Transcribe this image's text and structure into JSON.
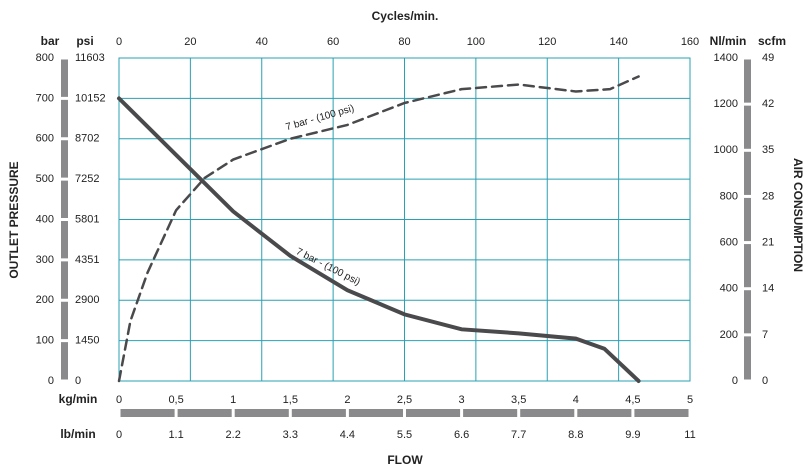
{
  "chart_data": {
    "type": "line",
    "x_title": "kg/min",
    "y_title": "bar",
    "y2_title": "Nl/min",
    "left_label": "OUTLET PRESSURE",
    "right_label": "AIR CONSUMPTION",
    "bottom_label": "FLOW",
    "xlim": [
      0,
      5
    ],
    "xticks": [
      0,
      {
        "value": 0.5,
        "label": "0,5"
      },
      1,
      {
        "value": 1.5,
        "label": "1,5"
      },
      2,
      {
        "value": 2.5,
        "label": "2,5"
      },
      3,
      {
        "value": 3.5,
        "label": "3,5"
      },
      4,
      {
        "value": 4.5,
        "label": "4,5"
      },
      5
    ],
    "ylim": [
      0,
      800
    ],
    "yticks": [
      0,
      100,
      200,
      300,
      400,
      500,
      600,
      700,
      800
    ],
    "y2lim": [
      0,
      1400
    ],
    "y2ticks": [
      0,
      200,
      400,
      600,
      800,
      1000,
      1200,
      1400
    ],
    "top_axis": {
      "title": "Cycles/min.",
      "lim": [
        0,
        160
      ],
      "ticks": [
        0,
        20,
        40,
        60,
        80,
        100,
        120,
        140,
        160
      ]
    },
    "psi_axis": {
      "title": "psi",
      "lim": [
        0,
        11603
      ],
      "ticks": [
        0,
        1450,
        2900,
        4351,
        5801,
        7252,
        8702,
        10152,
        11603
      ]
    },
    "scfm_axis": {
      "title": "scfm",
      "lim": [
        0,
        49
      ],
      "ticks": [
        0,
        7,
        14,
        21,
        28,
        35,
        42,
        49
      ]
    },
    "lb_axis": {
      "title": "lb/min",
      "lim": [
        0,
        11
      ],
      "ticks": [
        0,
        1.1,
        2.2,
        3.3,
        4.4,
        5.5,
        6.6,
        7.7,
        8.8,
        9.9,
        11
      ]
    },
    "grid": true,
    "grid_color": "#2aa1b3",
    "series": [
      {
        "name": "7 bar - (100 psi)",
        "color": "#4a4a4d",
        "style": "solid",
        "x": [
          0,
          0.5,
          1,
          1.5,
          2,
          2.5,
          3,
          3.5,
          4,
          4.25,
          4.55
        ],
        "values": [
          700,
          560,
          420,
          310,
          225,
          165,
          128,
          118,
          105,
          80,
          0
        ]
      },
      {
        "name": "7 bar - (100 psi)",
        "color": "#4a4a4d",
        "style": "dashed",
        "axis": "y2",
        "x": [
          0,
          0.1,
          0.25,
          0.5,
          0.75,
          1,
          1.5,
          2,
          2.5,
          3,
          3.5,
          4,
          4.3,
          4.55
        ],
        "values": [
          0,
          260,
          470,
          740,
          880,
          960,
          1050,
          1110,
          1205,
          1265,
          1285,
          1255,
          1265,
          1320
        ]
      }
    ]
  }
}
